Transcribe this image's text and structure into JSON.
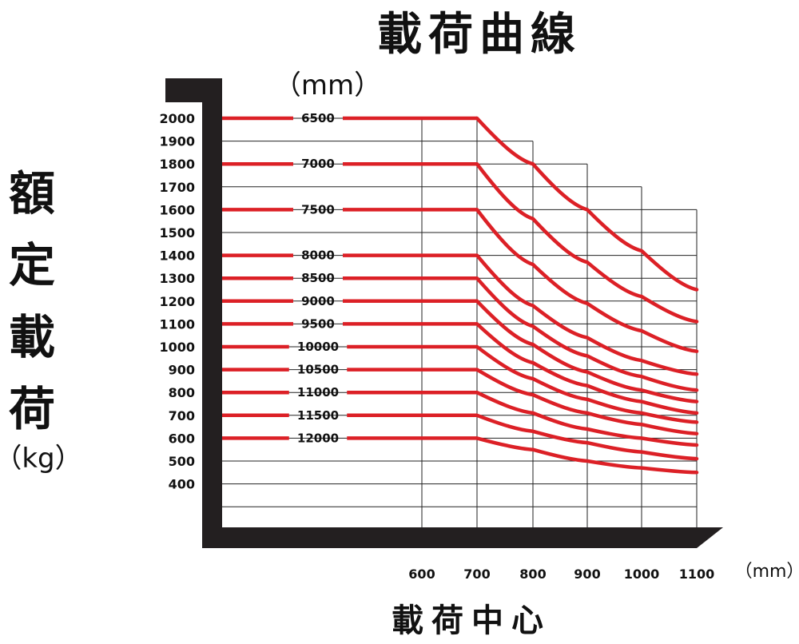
{
  "chart_data": {
    "type": "line",
    "title": "載荷曲線",
    "series_unit": "（mm）",
    "ylabel": "額定載荷",
    "ylabel_unit": "（kg）",
    "xlabel": "載荷中心",
    "x_unit": "（mm）",
    "y_ticks": [
      "2000",
      "1900",
      "1800",
      "1700",
      "1600",
      "1500",
      "1400",
      "1300",
      "1200",
      "1100",
      "1000",
      "900",
      "800",
      "700",
      "600",
      "500",
      "400"
    ],
    "x_ticks": [
      "600",
      "700",
      "800",
      "900",
      "1000",
      "1100"
    ],
    "ylim": [
      300,
      2000
    ],
    "x_grid": [
      600,
      700,
      800,
      900,
      1000,
      1100
    ],
    "colors": {
      "curve": "#dc2026",
      "axis": "#231f20",
      "grid": "#222222"
    },
    "series": [
      {
        "name": "6500",
        "points": [
          [
            700,
            2000
          ],
          [
            800,
            1800
          ],
          [
            900,
            1600
          ],
          [
            1000,
            1420
          ],
          [
            1100,
            1250
          ]
        ]
      },
      {
        "name": "7000",
        "points": [
          [
            700,
            1800
          ],
          [
            800,
            1560
          ],
          [
            900,
            1370
          ],
          [
            1000,
            1220
          ],
          [
            1100,
            1110
          ]
        ]
      },
      {
        "name": "7500",
        "points": [
          [
            700,
            1600
          ],
          [
            800,
            1360
          ],
          [
            900,
            1190
          ],
          [
            1000,
            1070
          ],
          [
            1100,
            980
          ]
        ]
      },
      {
        "name": "8000",
        "points": [
          [
            700,
            1400
          ],
          [
            800,
            1180
          ],
          [
            900,
            1040
          ],
          [
            1000,
            940
          ],
          [
            1100,
            880
          ]
        ]
      },
      {
        "name": "8500",
        "points": [
          [
            700,
            1300
          ],
          [
            800,
            1090
          ],
          [
            900,
            960
          ],
          [
            1000,
            870
          ],
          [
            1100,
            810
          ]
        ]
      },
      {
        "name": "9000",
        "points": [
          [
            700,
            1200
          ],
          [
            800,
            1010
          ],
          [
            900,
            890
          ],
          [
            1000,
            810
          ],
          [
            1100,
            760
          ]
        ]
      },
      {
        "name": "9500",
        "points": [
          [
            700,
            1100
          ],
          [
            800,
            930
          ],
          [
            900,
            830
          ],
          [
            1000,
            760
          ],
          [
            1100,
            710
          ]
        ]
      },
      {
        "name": "10000",
        "points": [
          [
            700,
            1000
          ],
          [
            800,
            860
          ],
          [
            900,
            770
          ],
          [
            1000,
            710
          ],
          [
            1100,
            670
          ]
        ]
      },
      {
        "name": "10500",
        "points": [
          [
            700,
            900
          ],
          [
            800,
            790
          ],
          [
            900,
            710
          ],
          [
            1000,
            660
          ],
          [
            1100,
            620
          ]
        ]
      },
      {
        "name": "11000",
        "points": [
          [
            700,
            800
          ],
          [
            800,
            710
          ],
          [
            900,
            640
          ],
          [
            1000,
            600
          ],
          [
            1100,
            570
          ]
        ]
      },
      {
        "name": "11500",
        "points": [
          [
            700,
            700
          ],
          [
            800,
            630
          ],
          [
            900,
            580
          ],
          [
            1000,
            540
          ],
          [
            1100,
            510
          ]
        ]
      },
      {
        "name": "12000",
        "points": [
          [
            700,
            600
          ],
          [
            800,
            550
          ],
          [
            900,
            500
          ],
          [
            1000,
            470
          ],
          [
            1100,
            450
          ]
        ]
      }
    ]
  }
}
